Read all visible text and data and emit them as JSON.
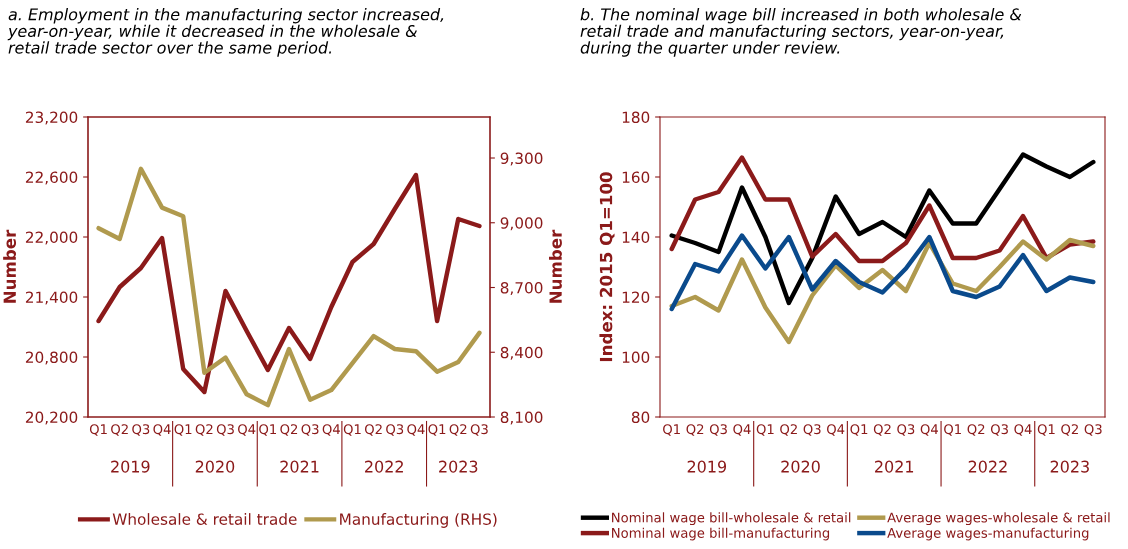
{
  "chart_data": [
    {
      "type": "line",
      "title": "a. Employment in the manufacturing sector increased,\nyear-on-year, while it decreased in the wholesale &\nretail trade sector over the same period.",
      "ylabel": "Number",
      "y2label": "Number",
      "categories": [
        "Q1",
        "Q2",
        "Q3",
        "Q4",
        "Q1",
        "Q2",
        "Q3",
        "Q4",
        "Q1",
        "Q2",
        "Q3",
        "Q4",
        "Q1",
        "Q2",
        "Q3",
        "Q4",
        "Q1",
        "Q2",
        "Q3"
      ],
      "annotations": [
        "2019",
        "2020",
        "2021",
        "2022",
        "2023"
      ],
      "ylim": [
        20200,
        23200
      ],
      "yticks": [
        {
          "value": 20200,
          "label": "20,200"
        },
        {
          "value": 20800,
          "label": "20,800"
        },
        {
          "value": 21400,
          "label": "21,400"
        },
        {
          "value": 22000,
          "label": "22,000"
        },
        {
          "value": 22600,
          "label": "22,600"
        },
        {
          "value": 23200,
          "label": "23,200"
        }
      ],
      "y2lim": [
        8100,
        9490
      ],
      "y2ticks": [
        {
          "value": 8100,
          "label": "8,100"
        },
        {
          "value": 8400,
          "label": "8,400"
        },
        {
          "value": 8700,
          "label": "8,700"
        },
        {
          "value": 9000,
          "label": "9,000"
        },
        {
          "value": 9300,
          "label": "9,300"
        }
      ],
      "legend": "bottom",
      "grid": false,
      "series": [
        {
          "name": "Wholesale & retail trade",
          "color": "#8b1a1a",
          "values": [
            21160,
            21500,
            21690,
            21990,
            20680,
            20450,
            21460,
            21060,
            20670,
            21090,
            20780,
            21300,
            21750,
            21930,
            22280,
            22620,
            21160,
            22180,
            22110
          ]
        },
        {
          "name": "Manufacturing (RHS)",
          "color": "#b09a4e",
          "axis": "y2",
          "values": [
            8975,
            8925,
            9250,
            9070,
            9030,
            8305,
            8375,
            8205,
            8155,
            8415,
            8180,
            8225,
            8350,
            8475,
            8415,
            8405,
            8310,
            8355,
            8490
          ]
        }
      ]
    },
    {
      "type": "line",
      "title": "b. The nominal wage bill increased in both wholesale &\nretail trade and manufacturing sectors, year-on-year,\nduring the quarter under review.",
      "ylabel": "Index: 2015 Q1=100",
      "categories": [
        "Q1",
        "Q2",
        "Q3",
        "Q4",
        "Q1",
        "Q2",
        "Q3",
        "Q4",
        "Q1",
        "Q2",
        "Q3",
        "Q4",
        "Q1",
        "Q2",
        "Q3",
        "Q4",
        "Q1",
        "Q2",
        "Q3"
      ],
      "annotations": [
        "2019",
        "2020",
        "2021",
        "2022",
        "2023"
      ],
      "ylim": [
        80,
        180
      ],
      "yticks": [
        80,
        100,
        120,
        140,
        160,
        180
      ],
      "legend": "bottom",
      "grid": false,
      "series": [
        {
          "name": "Nominal wage bill-wholesale & retail",
          "color": "#000000",
          "values": [
            140.5,
            138,
            135,
            156.5,
            140,
            118,
            133,
            153.5,
            141,
            145,
            140,
            155.5,
            144.5,
            144.5,
            156,
            167.5,
            163.5,
            160,
            165
          ]
        },
        {
          "name": "Nominal wage bill-manufacturing",
          "color": "#8b1a1a",
          "values": [
            136,
            152.5,
            155,
            166.5,
            152.5,
            152.5,
            133.5,
            141,
            132,
            132,
            138,
            150.5,
            133,
            133,
            135.5,
            147,
            133,
            137.5,
            138.5
          ]
        },
        {
          "name": "Average wages-wholesale & retail",
          "color": "#b09a4e",
          "values": [
            117,
            120,
            115.5,
            132.5,
            116.5,
            105,
            120.5,
            130.5,
            123,
            129,
            122,
            138,
            124.5,
            122,
            130,
            138.5,
            132.5,
            139,
            137
          ]
        },
        {
          "name": "Average wages-manufacturing",
          "color": "#0a4a8c",
          "values": [
            116,
            131,
            128.5,
            140.5,
            129.5,
            140,
            122.5,
            132,
            125,
            121.5,
            129.5,
            140,
            122,
            120,
            123.5,
            134,
            122,
            126.5,
            125
          ]
        }
      ]
    }
  ]
}
